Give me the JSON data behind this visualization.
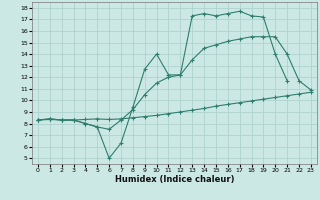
{
  "xlabel": "Humidex (Indice chaleur)",
  "ylabel": "",
  "bg_color": "#cce8e4",
  "line_color": "#2e7d6e",
  "grid_color": "#aacfca",
  "xlim": [
    -0.5,
    23.5
  ],
  "ylim": [
    4.5,
    18.5
  ],
  "xticks": [
    0,
    1,
    2,
    3,
    4,
    5,
    6,
    7,
    8,
    9,
    10,
    11,
    12,
    13,
    14,
    15,
    16,
    17,
    18,
    19,
    20,
    21,
    22,
    23
  ],
  "yticks": [
    5,
    6,
    7,
    8,
    9,
    10,
    11,
    12,
    13,
    14,
    15,
    16,
    17,
    18
  ],
  "line1_x": [
    0,
    1,
    2,
    3,
    4,
    5,
    6,
    7,
    8,
    9,
    10,
    11,
    12,
    13,
    14,
    15,
    16,
    17,
    18,
    19,
    20,
    21
  ],
  "line1_y": [
    8.3,
    8.4,
    8.3,
    8.3,
    8.0,
    7.7,
    5.0,
    6.3,
    9.4,
    12.7,
    14.0,
    12.2,
    12.2,
    17.3,
    17.5,
    17.3,
    17.5,
    17.7,
    17.3,
    17.2,
    14.0,
    11.7
  ],
  "line2_x": [
    0,
    1,
    2,
    3,
    4,
    5,
    6,
    7,
    8,
    9,
    10,
    11,
    12,
    13,
    14,
    15,
    16,
    17,
    18,
    19,
    20,
    21,
    22,
    23
  ],
  "line2_y": [
    8.3,
    8.35,
    8.3,
    8.3,
    8.35,
    8.4,
    8.35,
    8.4,
    8.5,
    8.6,
    8.7,
    8.85,
    9.0,
    9.15,
    9.3,
    9.5,
    9.65,
    9.8,
    9.95,
    10.1,
    10.25,
    10.4,
    10.55,
    10.7
  ],
  "line3_x": [
    0,
    1,
    2,
    3,
    4,
    5,
    6,
    7,
    8,
    9,
    10,
    11,
    12,
    13,
    14,
    15,
    16,
    17,
    18,
    19,
    20,
    21,
    22,
    23
  ],
  "line3_y": [
    8.3,
    8.4,
    8.3,
    8.3,
    8.0,
    7.7,
    7.5,
    8.3,
    9.2,
    10.5,
    11.5,
    12.0,
    12.2,
    13.5,
    14.5,
    14.8,
    15.1,
    15.3,
    15.5,
    15.5,
    15.5,
    14.0,
    11.7,
    10.9
  ]
}
